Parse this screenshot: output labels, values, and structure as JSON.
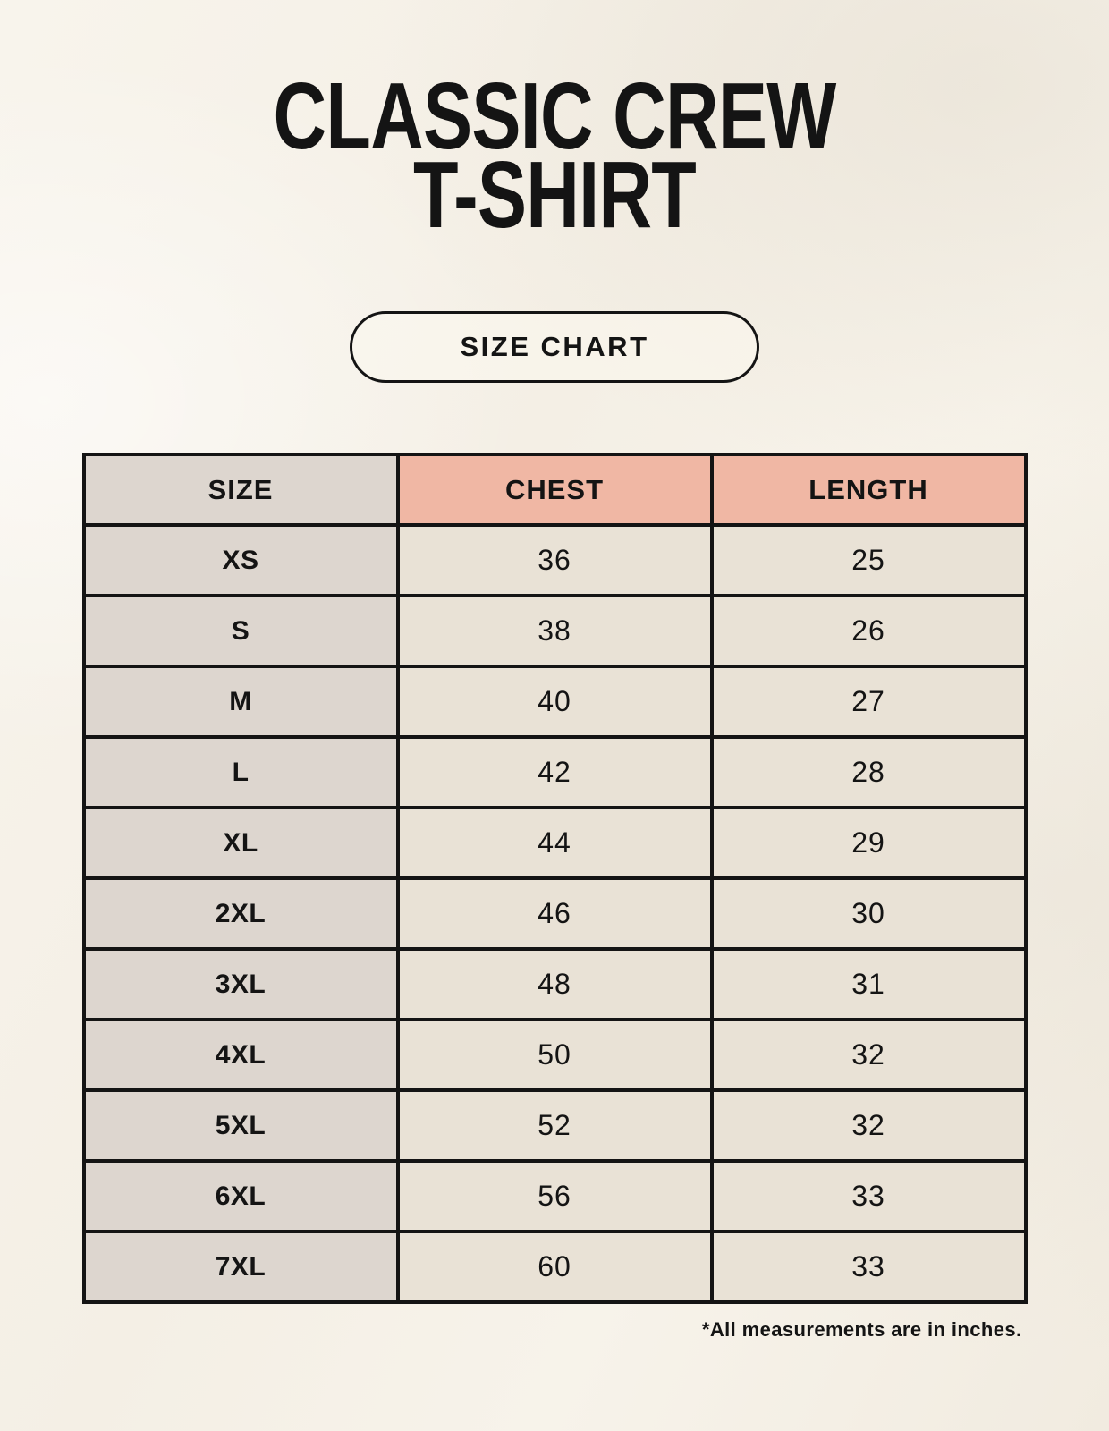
{
  "header": {
    "title_line1": "CLASSIC CREW",
    "title_line2": "T-SHIRT",
    "badge_label": "SIZE CHART"
  },
  "footnote": "*All measurements are in inches.",
  "chart_data": {
    "type": "table",
    "title": "Classic Crew T-Shirt Size Chart",
    "columns": [
      "SIZE",
      "CHEST",
      "LENGTH"
    ],
    "rows": [
      [
        "XS",
        "36",
        "25"
      ],
      [
        "S",
        "38",
        "26"
      ],
      [
        "M",
        "40",
        "27"
      ],
      [
        "L",
        "42",
        "28"
      ],
      [
        "XL",
        "44",
        "29"
      ],
      [
        "2XL",
        "46",
        "30"
      ],
      [
        "3XL",
        "48",
        "31"
      ],
      [
        "4XL",
        "50",
        "32"
      ],
      [
        "5XL",
        "52",
        "32"
      ],
      [
        "6XL",
        "56",
        "33"
      ],
      [
        "7XL",
        "60",
        "33"
      ]
    ],
    "units": "inches"
  },
  "colors": {
    "background": "#f5f1e8",
    "header_accent": "#f0b7a4",
    "size_column": "#ddd6cf",
    "value_cell": "#e9e2d6",
    "border": "#141414",
    "text": "#141414"
  }
}
